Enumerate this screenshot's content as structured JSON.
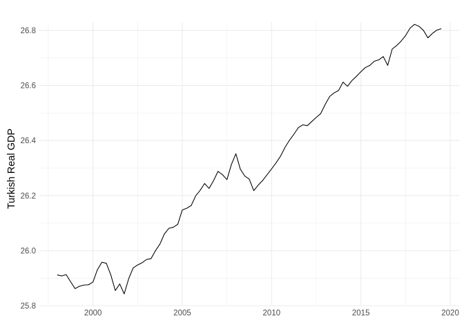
{
  "chart_data": {
    "type": "line",
    "title": "",
    "xlabel": "",
    "ylabel": "Turkish Real GDP",
    "xlim": [
      1997.0,
      2020.5
    ],
    "ylim": [
      25.8,
      26.83
    ],
    "x_ticks": [
      2000,
      2005,
      2010,
      2015,
      2020
    ],
    "y_ticks": [
      25.8,
      26.0,
      26.2,
      26.4,
      26.6,
      26.8
    ],
    "y_tick_labels": [
      "25.8",
      "26.0",
      "26.2",
      "26.4",
      "26.6",
      "26.8"
    ],
    "grid": true,
    "legend": "none",
    "colors": {
      "line": "#000000",
      "grid": "#ebebeb",
      "tick_text": "#4d4d4d",
      "background": "#ffffff"
    },
    "series": [
      {
        "x": [
          1998.0,
          1998.25,
          1998.5,
          1998.75,
          1999.0,
          1999.25,
          1999.5,
          1999.75,
          2000.0,
          2000.25,
          2000.5,
          2000.75,
          2001.0,
          2001.25,
          2001.5,
          2001.75,
          2002.0,
          2002.25,
          2002.5,
          2002.75,
          2003.0,
          2003.25,
          2003.5,
          2003.75,
          2004.0,
          2004.25,
          2004.5,
          2004.75,
          2005.0,
          2005.25,
          2005.5,
          2005.75,
          2006.0,
          2006.25,
          2006.5,
          2006.75,
          2007.0,
          2007.25,
          2007.5,
          2007.75,
          2008.0,
          2008.25,
          2008.5,
          2008.75,
          2009.0,
          2009.25,
          2009.5,
          2009.75,
          2010.0,
          2010.25,
          2010.5,
          2010.75,
          2011.0,
          2011.25,
          2011.5,
          2011.75,
          2012.0,
          2012.25,
          2012.5,
          2012.75,
          2013.0,
          2013.25,
          2013.5,
          2013.75,
          2014.0,
          2014.25,
          2014.5,
          2014.75,
          2015.0,
          2015.25,
          2015.5,
          2015.75,
          2016.0,
          2016.25,
          2016.5,
          2016.75,
          2017.0,
          2017.25,
          2017.5,
          2017.75,
          2018.0,
          2018.25,
          2018.5,
          2018.75,
          2019.0,
          2019.25,
          2019.5
        ],
        "values": [
          25.912,
          25.908,
          25.913,
          25.887,
          25.862,
          25.871,
          25.875,
          25.876,
          25.886,
          25.931,
          25.958,
          25.954,
          25.912,
          25.855,
          25.879,
          25.843,
          25.898,
          25.937,
          25.948,
          25.956,
          25.968,
          25.971,
          26.0,
          26.024,
          26.061,
          26.081,
          26.085,
          26.096,
          26.148,
          26.154,
          26.164,
          26.199,
          26.219,
          26.244,
          26.226,
          26.254,
          26.288,
          26.276,
          26.258,
          26.313,
          26.352,
          26.296,
          26.271,
          26.26,
          26.218,
          26.238,
          26.255,
          26.276,
          26.297,
          26.319,
          26.343,
          26.375,
          26.401,
          26.423,
          26.447,
          26.457,
          26.454,
          26.469,
          26.484,
          26.498,
          26.531,
          26.56,
          26.573,
          26.582,
          26.612,
          26.597,
          26.618,
          26.633,
          26.65,
          26.665,
          26.673,
          26.688,
          26.693,
          26.705,
          26.673,
          26.732,
          26.745,
          26.761,
          26.781,
          26.808,
          26.822,
          26.815,
          26.8,
          26.773,
          26.789,
          26.801,
          26.806
        ]
      }
    ]
  }
}
